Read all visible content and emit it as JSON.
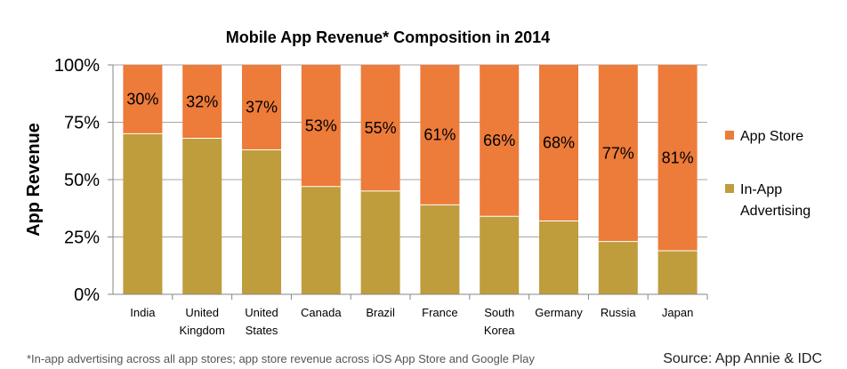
{
  "chart_data": {
    "type": "bar",
    "stacked": true,
    "title": "Mobile App Revenue* Composition in 2014",
    "ylabel": "App Revenue",
    "xlabel": "",
    "ylim": [
      0,
      100
    ],
    "yticks": [
      "0%",
      "25%",
      "50%",
      "75%",
      "100%"
    ],
    "grid": true,
    "legend_position": "right",
    "categories": [
      [
        "India"
      ],
      [
        "United",
        "Kingdom"
      ],
      [
        "United",
        "States"
      ],
      [
        "Canada"
      ],
      [
        "Brazil"
      ],
      [
        "France"
      ],
      [
        "South",
        "Korea"
      ],
      [
        "Germany"
      ],
      [
        "Russia"
      ],
      [
        "Japan"
      ]
    ],
    "series": [
      {
        "name": "In-App Advertising",
        "legend_lines": [
          "In-App",
          "Advertising"
        ],
        "color": "#bf9d3c",
        "values": [
          70,
          68,
          63,
          47,
          45,
          39,
          34,
          32,
          23,
          19
        ]
      },
      {
        "name": "App Store",
        "legend_lines": [
          "App Store"
        ],
        "color": "#ed7b3a",
        "values": [
          30,
          32,
          37,
          53,
          55,
          61,
          66,
          68,
          77,
          81
        ]
      }
    ],
    "data_labels": [
      "30%",
      "32%",
      "37%",
      "53%",
      "55%",
      "61%",
      "66%",
      "68%",
      "77%",
      "81%"
    ]
  },
  "footnote": "*In-app advertising across all app stores; app store revenue across iOS App Store and Google Play",
  "source": "Source: App Annie & IDC"
}
